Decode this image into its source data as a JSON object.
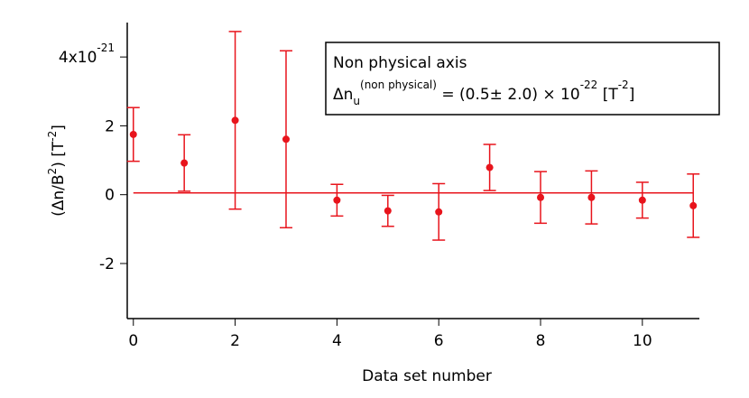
{
  "chart_data": {
    "type": "errorbar",
    "x_label": "Data set number",
    "y_label": {
      "parts": [
        "(Δn/B",
        "2",
        ") [T",
        "-2",
        "]"
      ]
    },
    "x": [
      0,
      1,
      2,
      3,
      4,
      5,
      6,
      7,
      8,
      9,
      10,
      11
    ],
    "values": [
      1.75,
      0.92,
      2.16,
      1.61,
      -0.16,
      -0.47,
      -0.5,
      0.79,
      -0.08,
      -0.08,
      -0.16,
      -0.32
    ],
    "errors": [
      0.78,
      0.82,
      2.58,
      2.57,
      0.46,
      0.45,
      0.82,
      0.67,
      0.75,
      0.77,
      0.52,
      0.92
    ],
    "fit_value": 0.05,
    "color": "#e8141c",
    "xlim": [
      -0.12,
      11.12
    ],
    "ylim": [
      -3.6,
      5.0
    ],
    "xticks": [
      0,
      2,
      4,
      6,
      8,
      10
    ],
    "yticks": [
      -2,
      0,
      2,
      {
        "value": 4,
        "label": "4x10",
        "label_sup": "-21"
      }
    ],
    "legend": {
      "title": "Non physical axis",
      "line": [
        "Δn",
        "u",
        "(non physical)",
        " = (0.5± 2.0)  ×  10",
        "-22",
        " [T",
        "-2",
        "]"
      ]
    }
  }
}
